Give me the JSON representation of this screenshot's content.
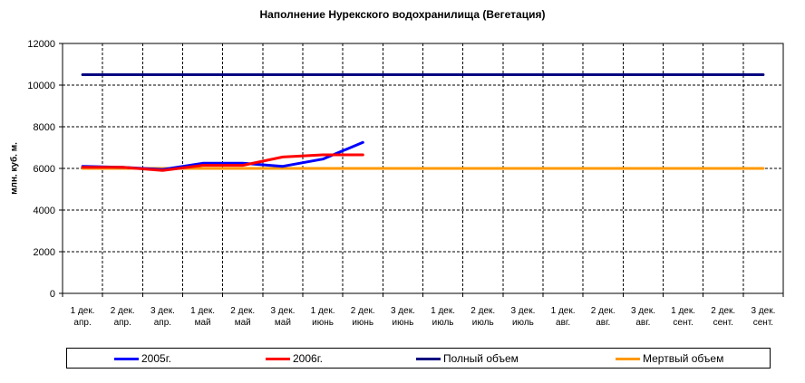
{
  "chart_data": {
    "type": "line",
    "title": "Наполнение Нурекского водохранилища (Вегетация)",
    "xlabel": "",
    "ylabel": "млн. куб. м.",
    "ylim": [
      0,
      12000
    ],
    "yticks": [
      "0",
      "2000",
      "4000",
      "6000",
      "8000",
      "10000",
      "12000"
    ],
    "categories": [
      [
        "1 дек.",
        "апр."
      ],
      [
        "2 дек.",
        "апр."
      ],
      [
        "3 дек.",
        "апр."
      ],
      [
        "1 дек.",
        "май"
      ],
      [
        "2 дек.",
        "май"
      ],
      [
        "3 дек.",
        "май"
      ],
      [
        "1 дек.",
        "июнь"
      ],
      [
        "2 дек.",
        "июнь"
      ],
      [
        "3 дек.",
        "июнь"
      ],
      [
        "1 дек.",
        "июль"
      ],
      [
        "2 дек.",
        "июль"
      ],
      [
        "3 дек.",
        "июль"
      ],
      [
        "1 дек.",
        "авг."
      ],
      [
        "2 дек.",
        "авг."
      ],
      [
        "3 дек.",
        "авг."
      ],
      [
        "1 дек.",
        "сент."
      ],
      [
        "2 дек.",
        "сент."
      ],
      [
        "3 дек.",
        "сент."
      ]
    ],
    "grid": true,
    "legend_position": "bottom",
    "series": [
      {
        "name": "2005г.",
        "color": "#0000ff",
        "values": [
          6100,
          6050,
          5950,
          6250,
          6250,
          6100,
          6450,
          7250,
          null,
          null,
          null,
          null,
          null,
          null,
          null,
          null,
          null,
          null
        ]
      },
      {
        "name": "2006г.",
        "color": "#ff0000",
        "values": [
          6050,
          6050,
          5900,
          6150,
          6150,
          6550,
          6650,
          6650,
          null,
          null,
          null,
          null,
          null,
          null,
          null,
          null,
          null,
          null
        ]
      },
      {
        "name": "Полный объем",
        "color": "#000080",
        "values": [
          10500,
          10500,
          10500,
          10500,
          10500,
          10500,
          10500,
          10500,
          10500,
          10500,
          10500,
          10500,
          10500,
          10500,
          10500,
          10500,
          10500,
          10500
        ]
      },
      {
        "name": "Мертвый объем",
        "color": "#ff9900",
        "values": [
          6000,
          6000,
          6000,
          6000,
          6000,
          6000,
          6000,
          6000,
          6000,
          6000,
          6000,
          6000,
          6000,
          6000,
          6000,
          6000,
          6000,
          6000
        ]
      }
    ]
  }
}
